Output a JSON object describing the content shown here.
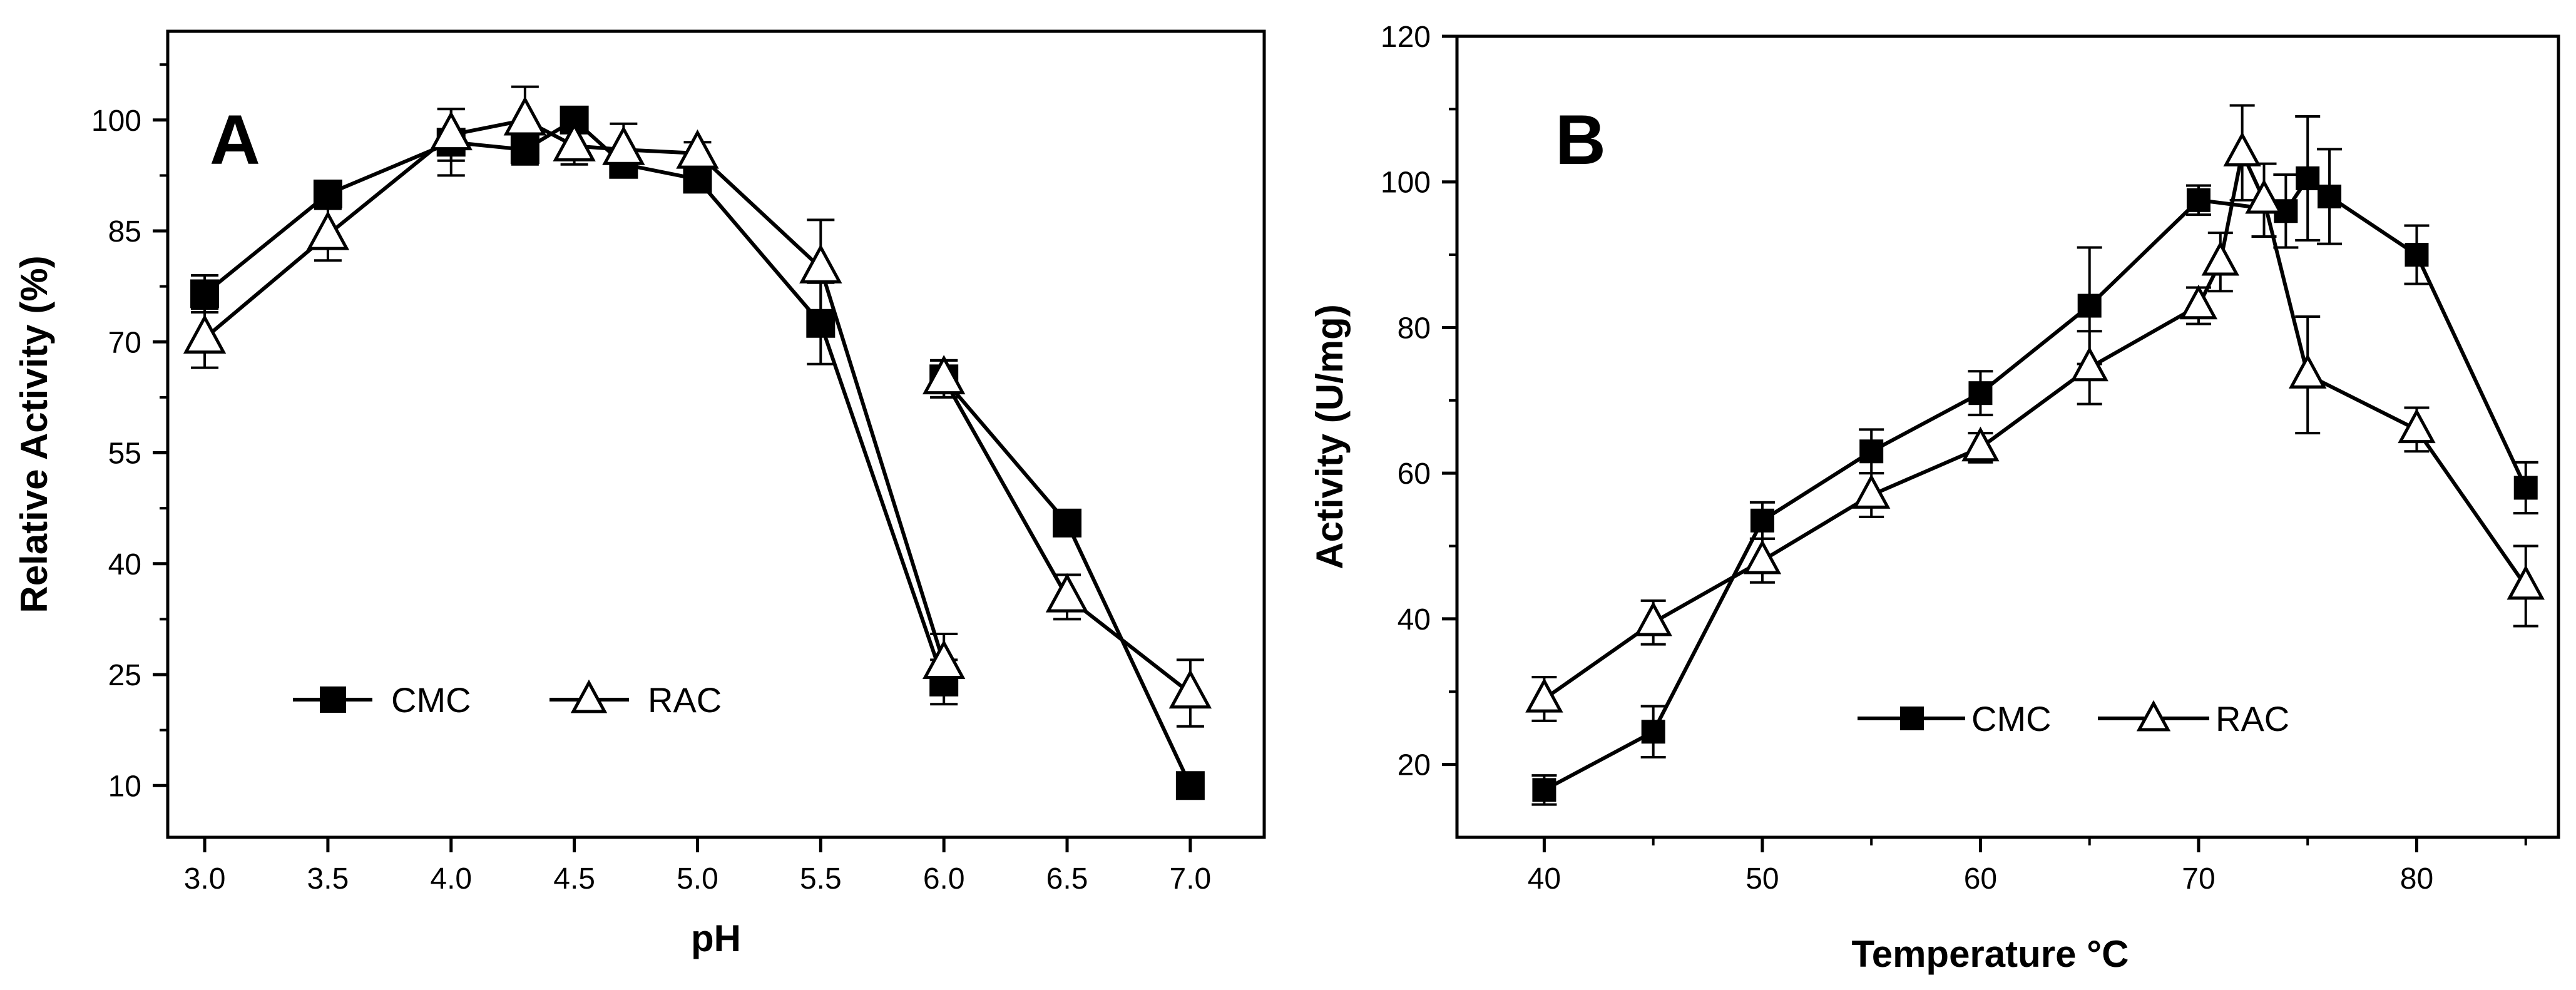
{
  "chart_data": [
    {
      "type": "line",
      "panel_label": "A",
      "title": "",
      "xlabel": "pH",
      "ylabel": "Relative Activity (%)",
      "xlim": [
        2.85,
        7.3
      ],
      "ylim": [
        3,
        112
      ],
      "xticks": [
        3.0,
        3.5,
        4.0,
        4.5,
        5.0,
        5.5,
        6.0,
        6.5,
        7.0
      ],
      "xtick_labels": [
        "3.0",
        "3.5",
        "4.0",
        "4.5",
        "5.0",
        "5.5",
        "6.0",
        "6.5",
        "7.0"
      ],
      "yticks": [
        10,
        25,
        40,
        55,
        70,
        85,
        100
      ],
      "ytick_labels": [
        "10",
        "25",
        "40",
        "55",
        "70",
        "85",
        "100"
      ],
      "grid": false,
      "legend": "lower-left",
      "series": [
        {
          "name": "CMC",
          "marker": "filled-square",
          "segments": [
            [
              {
                "x": 3.0,
                "y": 76.5,
                "err": 2.5
              },
              {
                "x": 3.5,
                "y": 90.0,
                "err": 1.5
              },
              {
                "x": 4.0,
                "y": 97.0,
                "err": 4.5
              },
              {
                "x": 4.3,
                "y": 96.0,
                "err": 2.0
              },
              {
                "x": 4.5,
                "y": 100.0,
                "err": 1.5
              },
              {
                "x": 4.7,
                "y": 94.0,
                "err": 1.5
              },
              {
                "x": 5.0,
                "y": 92.0,
                "err": 1.5
              },
              {
                "x": 5.5,
                "y": 72.5,
                "err": 5.5
              },
              {
                "x": 6.0,
                "y": 24.0,
                "err": 3.0
              }
            ],
            [
              {
                "x": 6.0,
                "y": 65.0,
                "err": 2.5
              },
              {
                "x": 6.5,
                "y": 45.5,
                "err": 1.0
              },
              {
                "x": 7.0,
                "y": 10.0,
                "err": 1.0
              }
            ]
          ]
        },
        {
          "name": "RAC",
          "marker": "open-triangle",
          "segments": [
            [
              {
                "x": 3.0,
                "y": 70.5,
                "err": 4.0
              },
              {
                "x": 3.5,
                "y": 84.5,
                "err": 3.5
              },
              {
                "x": 4.0,
                "y": 98.0,
                "err": 3.5
              },
              {
                "x": 4.3,
                "y": 100.0,
                "err": 4.5
              },
              {
                "x": 4.5,
                "y": 96.5,
                "err": 2.5
              },
              {
                "x": 4.7,
                "y": 96.0,
                "err": 3.5
              },
              {
                "x": 5.0,
                "y": 95.5,
                "err": 1.5
              },
              {
                "x": 5.5,
                "y": 80.0,
                "err": 6.5
              },
              {
                "x": 6.0,
                "y": 26.5,
                "err": 4.0
              }
            ],
            [
              {
                "x": 6.0,
                "y": 65.0,
                "err": 2.5
              },
              {
                "x": 6.5,
                "y": 35.5,
                "err": 3.0
              },
              {
                "x": 7.0,
                "y": 22.5,
                "err": 4.5
              }
            ]
          ]
        }
      ]
    },
    {
      "type": "line",
      "panel_label": "B",
      "title": "",
      "xlabel": "Temperature °C",
      "ylabel": "Activity (U/mg)",
      "xlim": [
        36,
        86.5
      ],
      "ylim": [
        10,
        120
      ],
      "xticks": [
        40,
        50,
        60,
        70,
        80
      ],
      "xtick_labels": [
        "40",
        "50",
        "60",
        "70",
        "80"
      ],
      "yticks": [
        20,
        40,
        60,
        80,
        100,
        120
      ],
      "ytick_labels": [
        "20",
        "40",
        "60",
        "80",
        "100",
        "120"
      ],
      "grid": false,
      "legend": "lower-center",
      "series": [
        {
          "name": "CMC",
          "marker": "filled-square",
          "segments": [
            [
              {
                "x": 40,
                "y": 16.5,
                "err": 2.0
              },
              {
                "x": 45,
                "y": 24.5,
                "err": 3.5
              },
              {
                "x": 50,
                "y": 53.5,
                "err": 2.5
              },
              {
                "x": 55,
                "y": 63.0,
                "err": 3.0
              },
              {
                "x": 60,
                "y": 71.0,
                "err": 3.0
              },
              {
                "x": 65,
                "y": 83.0,
                "err": 8.0
              },
              {
                "x": 70,
                "y": 97.5,
                "err": 2.0
              },
              {
                "x": 74,
                "y": 96.0,
                "err": 5.0
              },
              {
                "x": 75,
                "y": 100.5,
                "err": 8.5
              },
              {
                "x": 76,
                "y": 98.0,
                "err": 6.5
              },
              {
                "x": 80,
                "y": 90.0,
                "err": 4.0
              },
              {
                "x": 85,
                "y": 58.0,
                "err": 3.5
              }
            ]
          ]
        },
        {
          "name": "RAC",
          "marker": "open-triangle",
          "segments": [
            [
              {
                "x": 40,
                "y": 29.0,
                "err": 3.0
              },
              {
                "x": 45,
                "y": 39.5,
                "err": 3.0
              },
              {
                "x": 50,
                "y": 48.0,
                "err": 3.0
              },
              {
                "x": 55,
                "y": 57.0,
                "err": 3.0
              },
              {
                "x": 60,
                "y": 63.5,
                "err": 2.0
              },
              {
                "x": 65,
                "y": 74.5,
                "err": 5.0
              },
              {
                "x": 70,
                "y": 83.0,
                "err": 2.5
              },
              {
                "x": 71,
                "y": 89.0,
                "err": 4.0
              },
              {
                "x": 72,
                "y": 104.0,
                "err": 6.5
              },
              {
                "x": 73,
                "y": 97.5,
                "err": 5.0
              },
              {
                "x": 75,
                "y": 73.5,
                "err": 8.0
              },
              {
                "x": 80,
                "y": 66.0,
                "err": 3.0
              },
              {
                "x": 85,
                "y": 44.5,
                "err": 5.5
              }
            ]
          ]
        }
      ]
    }
  ]
}
